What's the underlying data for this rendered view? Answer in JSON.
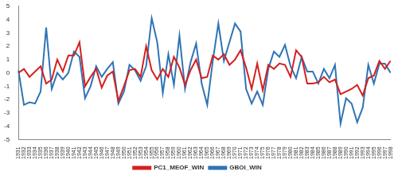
{
  "chart_data": {
    "type": "line",
    "categories": [
      "1931",
      "1932",
      "1933",
      "1934",
      "1935",
      "1936",
      "1937",
      "1938",
      "1939",
      "1940",
      "1941",
      "1942",
      "1943",
      "1944",
      "1945",
      "1946",
      "1947",
      "1948",
      "1949",
      "1950",
      "1951",
      "1952",
      "1953",
      "1954",
      "1955",
      "1956",
      "1957",
      "1958",
      "1959",
      "1960",
      "1961",
      "1962",
      "1963",
      "1964",
      "1965",
      "1966",
      "1967",
      "1968",
      "1969",
      "1970",
      "1971",
      "1972",
      "1973",
      "1974",
      "1975",
      "1976",
      "1977",
      "1978",
      "1979",
      "1980",
      "1981",
      "1982",
      "1983",
      "1984",
      "1985",
      "1986",
      "1987",
      "1988",
      "1989",
      "1990",
      "1991",
      "1992",
      "1993",
      "1994",
      "1995",
      "1996",
      "1997",
      "1998"
    ],
    "series": [
      {
        "name": "PC1_MEOF_WIN",
        "color": "#d42020",
        "values": [
          0,
          0.3,
          -0.3,
          0.1,
          0.5,
          -0.8,
          -0.5,
          1.0,
          0.1,
          1.3,
          1.3,
          2.3,
          -1.0,
          -0.3,
          0.3,
          -1.1,
          -0.2,
          0.1,
          -2.1,
          -1.0,
          0.2,
          0.3,
          -0.3,
          2.0,
          0.2,
          -0.5,
          0.3,
          -0.3,
          1.2,
          0.4,
          -0.9,
          0.2,
          1.0,
          -0.4,
          -0.3,
          1.3,
          1.0,
          1.4,
          0.6,
          1.0,
          1.7,
          0.4,
          -1.2,
          0.7,
          -1.3,
          0.6,
          0.3,
          0.7,
          0.6,
          -0.3,
          1.7,
          1.2,
          -0.8,
          -0.8,
          -0.7,
          -0.3,
          -0.7,
          -0.5,
          -1.6,
          -1.4,
          -1.2,
          -0.9,
          -1.7,
          -0.4,
          -0.2,
          0.9,
          0.3,
          0.9
        ]
      },
      {
        "name": "GBOI_WIN",
        "color": "#2e74b5",
        "values": [
          0.2,
          -2.4,
          -2.2,
          -2.3,
          -1.4,
          3.4,
          -1.2,
          0,
          -0.5,
          0,
          1.6,
          1.2,
          -1.9,
          -1.0,
          0.5,
          -0.3,
          0.3,
          0.8,
          -2.3,
          -1.4,
          0.6,
          0.2,
          -0.6,
          0.5,
          4.1,
          2.3,
          -1.5,
          1.4,
          -0.9,
          2.8,
          -1.2,
          0.8,
          2.2,
          -0.8,
          -2.4,
          0.9,
          3.7,
          0.9,
          2.3,
          3.7,
          3.1,
          -1.2,
          -2.3,
          -1.4,
          -2.4,
          0.3,
          1.6,
          1.2,
          2.1,
          0.5,
          -0.4,
          1.2,
          0.1,
          0.1,
          -0.8,
          0.3,
          -0.4,
          0.6,
          -3.8,
          -1.9,
          -2.3,
          -3.7,
          -2.6,
          0.6,
          -0.8,
          0.7,
          0.7,
          0
        ]
      }
    ],
    "ylim": [
      -5,
      5
    ],
    "yticks": [
      -5,
      -4,
      -3,
      -2,
      -1,
      0,
      1,
      2,
      3,
      4,
      5
    ],
    "grid": false,
    "legend": "bottom"
  }
}
